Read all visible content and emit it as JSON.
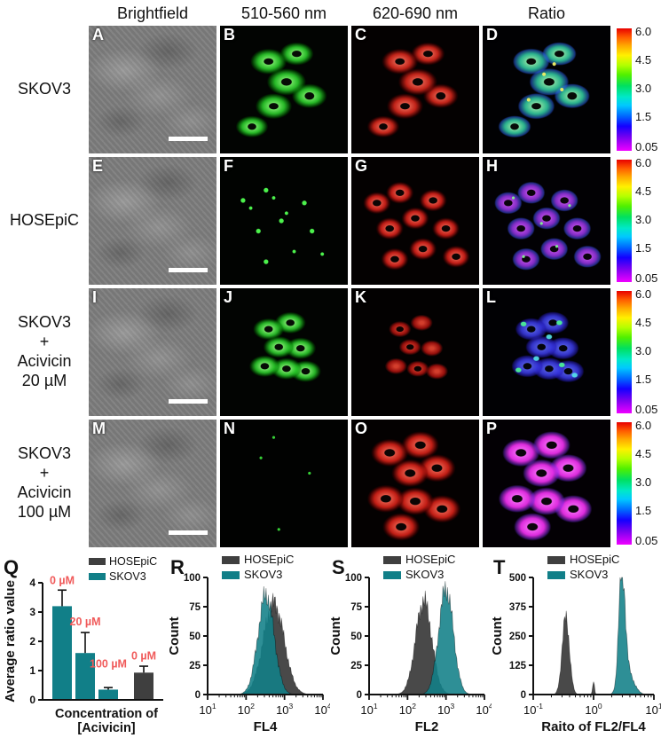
{
  "figure": {
    "column_headers": [
      "Brightfield",
      "510-560 nm",
      "620-690 nm",
      "Ratio"
    ],
    "rows": [
      {
        "label": "SKOV3",
        "panels": [
          "A",
          "B",
          "C",
          "D"
        ]
      },
      {
        "label": "HOSEpiC",
        "panels": [
          "E",
          "F",
          "G",
          "H"
        ]
      },
      {
        "label": "SKOV3\n+\nAcivicin\n20 µM",
        "panels": [
          "I",
          "J",
          "K",
          "L"
        ]
      },
      {
        "label": "SKOV3\n+\nAcivicin\n100 µM",
        "panels": [
          "M",
          "N",
          "O",
          "P"
        ]
      }
    ],
    "colorbar": {
      "ticks": [
        "6.0",
        "4.5",
        "3.0",
        "1.5",
        "0.05"
      ]
    }
  },
  "colors": {
    "teal": "#117f88",
    "dark_gray": "#3f3f3f",
    "annotation_red": "#f05a5a"
  },
  "chart_data": [
    {
      "panel_letter": "Q",
      "type": "bar",
      "ylabel": "Average ratio value",
      "xlabel": "Concentration of\n[Acivicin]",
      "ylim": [
        0,
        4
      ],
      "yticks": [
        0,
        1,
        2,
        3,
        4
      ],
      "legend": [
        {
          "label": "HOSEpiC",
          "color": "#3f3f3f"
        },
        {
          "label": "SKOV3",
          "color": "#117f88"
        }
      ],
      "annotation_color": "#f05a5a",
      "bars": [
        {
          "series": "SKOV3",
          "annotation": "0 µM",
          "value": 3.2,
          "error": 0.55,
          "annotation_y": 3.95
        },
        {
          "series": "SKOV3",
          "annotation": "20 µM",
          "value": 1.6,
          "error": 0.7,
          "annotation_y": 2.55
        },
        {
          "series": "SKOV3",
          "annotation": "100 µM",
          "value": 0.35,
          "error": 0.07,
          "annotation_y": 1.1
        },
        {
          "series": "HOSEpiC",
          "annotation": "0 µM",
          "value": 0.93,
          "error": 0.22,
          "annotation_y": 1.38
        }
      ]
    },
    {
      "panel_letter": "R",
      "type": "area",
      "subtype": "flow_histogram",
      "ylabel": "Count",
      "xlabel": "FL4",
      "ylim": [
        0,
        100
      ],
      "yticks": [
        0,
        25,
        50,
        75,
        100
      ],
      "x_log_ticks": [
        1,
        2,
        3,
        4
      ],
      "legend": [
        {
          "label": "HOSEpiC",
          "color": "#3f3f3f"
        },
        {
          "label": "SKOV3",
          "color": "#117f88"
        }
      ],
      "series": [
        {
          "name": "HOSEpiC",
          "color": "#3f3f3f",
          "components": [
            {
              "mu": 2.72,
              "sigma": 0.27,
              "peak": 78
            }
          ]
        },
        {
          "name": "SKOV3",
          "color": "#117f88",
          "components": [
            {
              "mu": 2.52,
              "sigma": 0.21,
              "peak": 85
            }
          ]
        }
      ]
    },
    {
      "panel_letter": "S",
      "type": "area",
      "subtype": "flow_histogram",
      "ylabel": "Count",
      "xlabel": "FL2",
      "ylim": [
        0,
        100
      ],
      "yticks": [
        0,
        25,
        50,
        75,
        100
      ],
      "x_log_ticks": [
        1,
        2,
        3,
        4
      ],
      "legend": [
        {
          "label": "HOSEpiC",
          "color": "#3f3f3f"
        },
        {
          "label": "SKOV3",
          "color": "#117f88"
        }
      ],
      "series": [
        {
          "name": "HOSEpiC",
          "color": "#3f3f3f",
          "components": [
            {
              "mu": 2.42,
              "sigma": 0.21,
              "peak": 80
            }
          ]
        },
        {
          "name": "SKOV3",
          "color": "#117f88",
          "components": [
            {
              "mu": 3.0,
              "sigma": 0.19,
              "peak": 90
            }
          ]
        }
      ]
    },
    {
      "panel_letter": "T",
      "type": "area",
      "subtype": "flow_histogram",
      "ylabel": "Count",
      "xlabel": "Raito of FL2/FL4",
      "ylim": [
        0,
        500
      ],
      "yticks": [
        0,
        125,
        250,
        375,
        500
      ],
      "x_log_ticks": [
        -1,
        0,
        1
      ],
      "legend": [
        {
          "label": "HOSEpiC",
          "color": "#3f3f3f"
        },
        {
          "label": "SKOV3",
          "color": "#117f88"
        }
      ],
      "series": [
        {
          "name": "HOSEpiC",
          "color": "#3f3f3f",
          "components": [
            {
              "mu": -0.46,
              "sigma": 0.06,
              "peak": 330
            },
            {
              "mu": 0.0,
              "sigma": 0.015,
              "peak": 55
            }
          ]
        },
        {
          "name": "SKOV3",
          "color": "#117f88",
          "components": [
            {
              "mu": 0.47,
              "sigma": 0.05,
              "peak": 500
            },
            {
              "mu": 0.56,
              "sigma": 0.1,
              "peak": 100
            }
          ]
        }
      ]
    }
  ]
}
